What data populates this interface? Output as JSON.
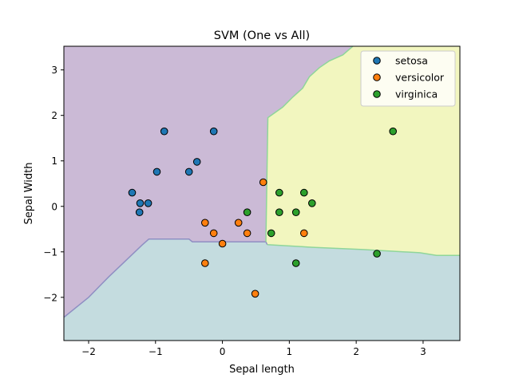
{
  "chart_data": {
    "type": "scatter",
    "title": "SVM (One vs All)",
    "xlabel": "Sepal length",
    "ylabel": "Sepal Width",
    "xlim": [
      -2.37,
      3.55
    ],
    "ylim": [
      -2.95,
      3.52
    ],
    "xticks": [
      -2,
      -1,
      0,
      1,
      2,
      3
    ],
    "xtick_labels": [
      "−2",
      "−1",
      "0",
      "1",
      "2",
      "3"
    ],
    "yticks": [
      -2,
      -1,
      0,
      1,
      2,
      3
    ],
    "ytick_labels": [
      "−2",
      "−1",
      "0",
      "1",
      "2",
      "3"
    ],
    "grid": false,
    "legend_position": "top-right",
    "regions": [
      {
        "class": "setosa",
        "color": "#cbbad6"
      },
      {
        "class": "versicolor",
        "color": "#c4dcdf"
      },
      {
        "class": "virginica",
        "color": "#f2f6bf"
      }
    ],
    "decision_boundaries": {
      "setosa_versicolor": [
        [
          -2.37,
          -2.44
        ],
        [
          -2.0,
          -2.0
        ],
        [
          -1.7,
          -1.55
        ],
        [
          -1.45,
          -1.2
        ],
        [
          -1.2,
          -0.85
        ],
        [
          -1.1,
          -0.72
        ],
        [
          -0.5,
          -0.72
        ],
        [
          -0.45,
          -0.78
        ],
        [
          0.65,
          -0.78
        ],
        [
          0.67,
          -0.84
        ]
      ],
      "setosa_virginica": [
        [
          0.65,
          -0.78
        ],
        [
          0.68,
          1.95
        ],
        [
          0.9,
          2.18
        ],
        [
          1.05,
          2.4
        ],
        [
          1.2,
          2.6
        ],
        [
          1.3,
          2.85
        ],
        [
          1.45,
          3.05
        ],
        [
          1.6,
          3.2
        ],
        [
          1.8,
          3.33
        ],
        [
          1.95,
          3.52
        ]
      ],
      "versicolor_virginica": [
        [
          0.67,
          -0.84
        ],
        [
          1.35,
          -0.9
        ],
        [
          2.1,
          -0.95
        ],
        [
          2.95,
          -1.02
        ],
        [
          3.2,
          -1.08
        ],
        [
          3.55,
          -1.08
        ]
      ]
    },
    "series": [
      {
        "name": "setosa",
        "color": "#1f77b4",
        "points": [
          [
            -1.35,
            0.3
          ],
          [
            -1.23,
            0.07
          ],
          [
            -1.24,
            -0.13
          ],
          [
            -1.11,
            0.07
          ],
          [
            -0.98,
            0.76
          ],
          [
            -0.87,
            1.65
          ],
          [
            -0.5,
            0.76
          ],
          [
            -0.38,
            0.98
          ],
          [
            -0.13,
            1.65
          ]
        ]
      },
      {
        "name": "versicolor",
        "color": "#ff7f0e",
        "points": [
          [
            -0.26,
            -0.36
          ],
          [
            -0.26,
            -1.25
          ],
          [
            -0.13,
            -0.59
          ],
          [
            0.0,
            -0.82
          ],
          [
            0.24,
            -0.36
          ],
          [
            0.37,
            -0.59
          ],
          [
            0.49,
            -1.92
          ],
          [
            0.61,
            0.53
          ],
          [
            1.22,
            -0.59
          ]
        ]
      },
      {
        "name": "virginica",
        "color": "#2ca02c",
        "points": [
          [
            0.37,
            -0.13
          ],
          [
            0.73,
            -0.59
          ],
          [
            0.85,
            0.3
          ],
          [
            0.85,
            -0.13
          ],
          [
            1.1,
            -0.13
          ],
          [
            1.1,
            -1.25
          ],
          [
            1.22,
            0.3
          ],
          [
            1.34,
            0.07
          ],
          [
            2.31,
            -1.04
          ],
          [
            2.55,
            1.65
          ]
        ]
      }
    ]
  }
}
